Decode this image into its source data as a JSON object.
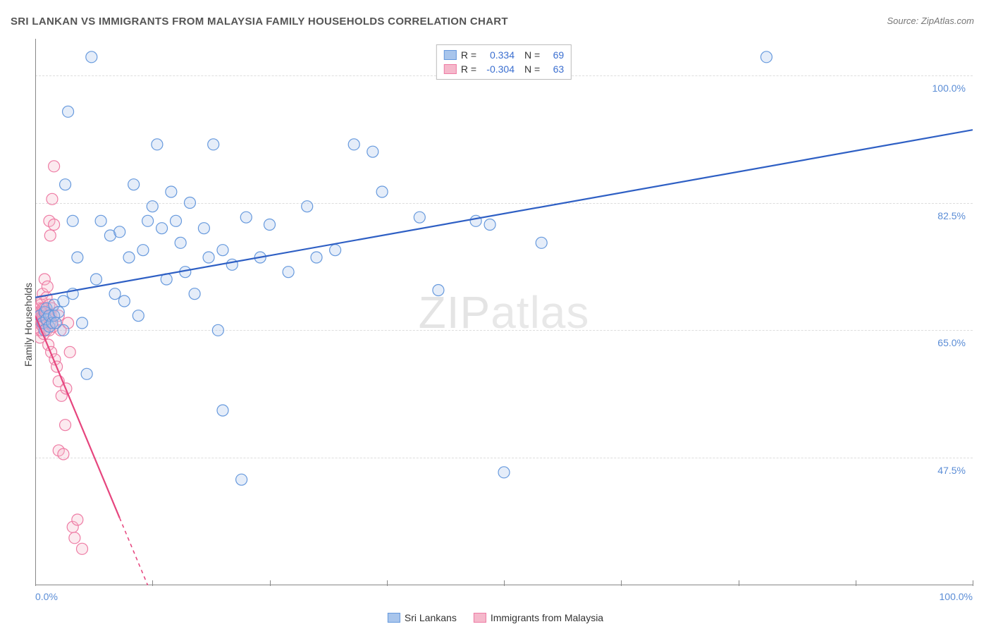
{
  "title": "SRI LANKAN VS IMMIGRANTS FROM MALAYSIA FAMILY HOUSEHOLDS CORRELATION CHART",
  "source_label": "Source: ZipAtlas.com",
  "y_axis_label": "Family Households",
  "watermark_a": "ZIP",
  "watermark_b": "atlas",
  "chart": {
    "type": "scatter",
    "xlim": [
      0,
      100
    ],
    "ylim": [
      30,
      105
    ],
    "x_tick_positions": [
      0,
      12.5,
      25,
      37.5,
      50,
      62.5,
      75,
      87.5,
      100
    ],
    "x_tick_labels": {
      "0": "0.0%",
      "100": "100.0%"
    },
    "y_gridlines": [
      47.5,
      65.0,
      82.5,
      100.0
    ],
    "y_tick_labels": [
      "47.5%",
      "65.0%",
      "82.5%",
      "100.0%"
    ],
    "grid_color": "#dddddd",
    "axis_color": "#888888",
    "background_color": "#ffffff",
    "tick_label_color": "#5b8dd6",
    "marker_radius": 8,
    "marker_stroke_width": 1.2,
    "marker_fill_opacity": 0.3,
    "line_width": 2.2
  },
  "series": [
    {
      "id": "sri_lankans",
      "label": "Sri Lankans",
      "color_fill": "#a8c5ec",
      "color_stroke": "#6699dd",
      "line_color": "#2e5fc4",
      "r": "0.334",
      "n": "69",
      "trend": {
        "x1": 0,
        "y1": 69.5,
        "x2": 100,
        "y2": 92.5
      },
      "points": [
        [
          0.5,
          67
        ],
        [
          0.8,
          66
        ],
        [
          1.0,
          67.5
        ],
        [
          1.0,
          65
        ],
        [
          1.2,
          68
        ],
        [
          1.2,
          66.5
        ],
        [
          1.5,
          67
        ],
        [
          1.5,
          65.5
        ],
        [
          1.8,
          66
        ],
        [
          2.0,
          67
        ],
        [
          2.0,
          68.5
        ],
        [
          2.2,
          66
        ],
        [
          2.5,
          67.5
        ],
        [
          3.0,
          65
        ],
        [
          3.0,
          69
        ],
        [
          3.2,
          85
        ],
        [
          3.5,
          95
        ],
        [
          4.0,
          80
        ],
        [
          4.0,
          70
        ],
        [
          4.5,
          75
        ],
        [
          5.0,
          66
        ],
        [
          5.5,
          59
        ],
        [
          6.0,
          102.5
        ],
        [
          6.5,
          72
        ],
        [
          7.0,
          80
        ],
        [
          8.0,
          78
        ],
        [
          8.5,
          70
        ],
        [
          9.0,
          78.5
        ],
        [
          9.5,
          69
        ],
        [
          10.0,
          75
        ],
        [
          10.5,
          85
        ],
        [
          11.0,
          67
        ],
        [
          11.5,
          76
        ],
        [
          12.0,
          80
        ],
        [
          12.5,
          82
        ],
        [
          13.0,
          90.5
        ],
        [
          13.5,
          79
        ],
        [
          14.0,
          72
        ],
        [
          14.5,
          84
        ],
        [
          15.0,
          80
        ],
        [
          15.5,
          77
        ],
        [
          16.0,
          73
        ],
        [
          16.5,
          82.5
        ],
        [
          17.0,
          70
        ],
        [
          18.0,
          79
        ],
        [
          18.5,
          75
        ],
        [
          19.0,
          90.5
        ],
        [
          19.5,
          65
        ],
        [
          20.0,
          76
        ],
        [
          20.0,
          54
        ],
        [
          21.0,
          74
        ],
        [
          22.0,
          44.5
        ],
        [
          22.5,
          80.5
        ],
        [
          24.0,
          75
        ],
        [
          25.0,
          79.5
        ],
        [
          27.0,
          73
        ],
        [
          29.0,
          82
        ],
        [
          30.0,
          75
        ],
        [
          32.0,
          76
        ],
        [
          34.0,
          90.5
        ],
        [
          36.0,
          89.5
        ],
        [
          37.0,
          84
        ],
        [
          41.0,
          80.5
        ],
        [
          43.0,
          70.5
        ],
        [
          47.0,
          80
        ],
        [
          48.5,
          79.5
        ],
        [
          50.0,
          45.5
        ],
        [
          54.0,
          77
        ],
        [
          78.0,
          102.5
        ]
      ]
    },
    {
      "id": "immigrants_malaysia",
      "label": "Immigrants from Malaysia",
      "color_fill": "#f5b8cb",
      "color_stroke": "#ee7ba4",
      "line_color": "#e6457e",
      "r": "-0.304",
      "n": "63",
      "trend": {
        "x1": 0,
        "y1": 67,
        "x2": 12,
        "y2": 30
      },
      "trend_dash_from_x": 9,
      "points": [
        [
          0.3,
          67
        ],
        [
          0.3,
          66
        ],
        [
          0.4,
          67.5
        ],
        [
          0.4,
          65
        ],
        [
          0.5,
          68
        ],
        [
          0.5,
          66.5
        ],
        [
          0.5,
          64
        ],
        [
          0.6,
          67
        ],
        [
          0.6,
          68.5
        ],
        [
          0.6,
          65
        ],
        [
          0.7,
          67.5
        ],
        [
          0.7,
          66
        ],
        [
          0.7,
          69
        ],
        [
          0.8,
          65.5
        ],
        [
          0.8,
          67
        ],
        [
          0.8,
          68
        ],
        [
          0.8,
          70
        ],
        [
          0.9,
          66
        ],
        [
          0.9,
          67.5
        ],
        [
          0.9,
          64.5
        ],
        [
          1.0,
          67
        ],
        [
          1.0,
          65
        ],
        [
          1.0,
          68
        ],
        [
          1.0,
          72
        ],
        [
          1.1,
          66.5
        ],
        [
          1.1,
          67
        ],
        [
          1.2,
          69.5
        ],
        [
          1.2,
          65
        ],
        [
          1.2,
          67.5
        ],
        [
          1.3,
          66
        ],
        [
          1.3,
          71
        ],
        [
          1.4,
          67
        ],
        [
          1.4,
          63
        ],
        [
          1.5,
          68.5
        ],
        [
          1.5,
          65
        ],
        [
          1.5,
          80
        ],
        [
          1.6,
          66
        ],
        [
          1.6,
          78
        ],
        [
          1.7,
          67
        ],
        [
          1.7,
          62
        ],
        [
          1.8,
          68
        ],
        [
          1.8,
          83
        ],
        [
          1.9,
          65.5
        ],
        [
          2.0,
          67
        ],
        [
          2.0,
          79.5
        ],
        [
          2.0,
          87.5
        ],
        [
          2.1,
          61
        ],
        [
          2.2,
          66
        ],
        [
          2.3,
          60
        ],
        [
          2.5,
          67
        ],
        [
          2.5,
          58
        ],
        [
          2.5,
          48.5
        ],
        [
          2.7,
          65
        ],
        [
          2.8,
          56
        ],
        [
          3.0,
          48
        ],
        [
          3.2,
          52
        ],
        [
          3.3,
          57
        ],
        [
          3.5,
          66
        ],
        [
          3.7,
          62
        ],
        [
          4.0,
          38
        ],
        [
          4.2,
          36.5
        ],
        [
          4.5,
          39
        ],
        [
          5.0,
          35
        ]
      ]
    }
  ],
  "legend_labels": {
    "r_prefix": "R =",
    "n_prefix": "N ="
  }
}
